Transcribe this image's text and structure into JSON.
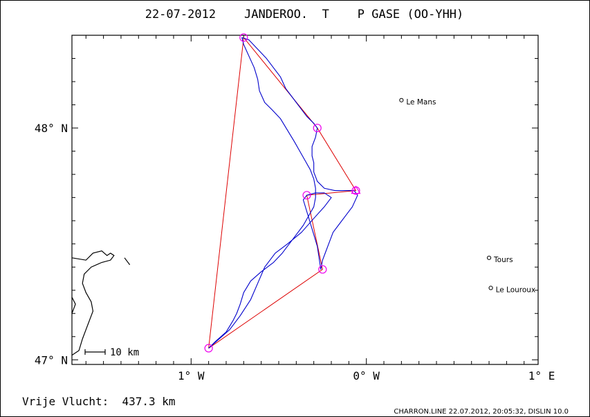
{
  "title": "22-07-2012    JANDEROO.  T    P GASE (OO-YHH)",
  "axes": {
    "y_labels": [
      {
        "text": "48° N",
        "lat": 48.0
      },
      {
        "text": "47° N",
        "lat": 47.0
      }
    ],
    "x_labels": [
      {
        "text": "1° W",
        "lon": -1.0
      },
      {
        "text": "0° W",
        "lon": 0.0
      },
      {
        "text": "1° E",
        "lon": 1.0
      }
    ]
  },
  "scale_bar_label": "10 km",
  "cities": [
    {
      "name": "Le Mans",
      "lon": 0.2,
      "lat": 48.12
    },
    {
      "name": "Tours",
      "lon": 0.7,
      "lat": 47.44
    },
    {
      "name": "Le Louroux",
      "lon": 0.71,
      "lat": 47.31
    }
  ],
  "footer": {
    "distance_text": "Vrije Vlucht:  437.3 km",
    "credit": "CHARRON.LINE 22.07.2012, 20:05:32, DISLIN 10.0"
  },
  "colors": {
    "track": "#0000cc",
    "task_lines": "#dd0000",
    "turnpoints": "#ee00ee",
    "frame": "#000000"
  },
  "chart_data": {
    "type": "map",
    "xlim": [
      -1.68,
      0.98
    ],
    "ylim": [
      46.98,
      48.4
    ],
    "task_points": [
      {
        "lon": -0.9,
        "lat": 47.05
      },
      {
        "lon": -0.7,
        "lat": 48.39
      },
      {
        "lon": -0.28,
        "lat": 48.0
      },
      {
        "lon": -0.06,
        "lat": 47.73
      },
      {
        "lon": -0.34,
        "lat": 47.71
      },
      {
        "lon": -0.25,
        "lat": 47.39
      }
    ],
    "task_order": [
      0,
      1,
      2,
      3,
      4,
      5,
      0
    ],
    "start_marker": {
      "lon": -0.06,
      "lat": 47.73,
      "shape": "triangle"
    },
    "track": [
      [
        -0.9,
        47.05
      ],
      [
        -0.86,
        47.08
      ],
      [
        -0.8,
        47.12
      ],
      [
        -0.76,
        47.17
      ],
      [
        -0.74,
        47.2
      ],
      [
        -0.72,
        47.24
      ],
      [
        -0.7,
        47.29
      ],
      [
        -0.66,
        47.34
      ],
      [
        -0.6,
        47.38
      ],
      [
        -0.53,
        47.42
      ],
      [
        -0.48,
        47.46
      ],
      [
        -0.44,
        47.5
      ],
      [
        -0.4,
        47.54
      ],
      [
        -0.36,
        47.58
      ],
      [
        -0.33,
        47.62
      ],
      [
        -0.3,
        47.66
      ],
      [
        -0.29,
        47.7
      ],
      [
        -0.29,
        47.74
      ],
      [
        -0.3,
        47.78
      ],
      [
        -0.32,
        47.82
      ],
      [
        -0.35,
        47.86
      ],
      [
        -0.38,
        47.9
      ],
      [
        -0.41,
        47.94
      ],
      [
        -0.45,
        47.99
      ],
      [
        -0.49,
        48.04
      ],
      [
        -0.54,
        48.08
      ],
      [
        -0.58,
        48.11
      ],
      [
        -0.61,
        48.16
      ],
      [
        -0.62,
        48.21
      ],
      [
        -0.64,
        48.26
      ],
      [
        -0.67,
        48.31
      ],
      [
        -0.7,
        48.36
      ],
      [
        -0.71,
        48.39
      ],
      [
        -0.67,
        48.38
      ],
      [
        -0.62,
        48.34
      ],
      [
        -0.57,
        48.3
      ],
      [
        -0.53,
        48.26
      ],
      [
        -0.49,
        48.22
      ],
      [
        -0.46,
        48.17
      ],
      [
        -0.42,
        48.13
      ],
      [
        -0.38,
        48.09
      ],
      [
        -0.34,
        48.05
      ],
      [
        -0.3,
        48.02
      ],
      [
        -0.28,
        48.0
      ],
      [
        -0.29,
        47.96
      ],
      [
        -0.31,
        47.92
      ],
      [
        -0.31,
        47.88
      ],
      [
        -0.3,
        47.85
      ],
      [
        -0.3,
        47.81
      ],
      [
        -0.28,
        47.77
      ],
      [
        -0.24,
        47.74
      ],
      [
        -0.18,
        47.73
      ],
      [
        -0.12,
        47.73
      ],
      [
        -0.07,
        47.73
      ],
      [
        -0.05,
        47.71
      ],
      [
        -0.08,
        47.66
      ],
      [
        -0.12,
        47.62
      ],
      [
        -0.16,
        47.58
      ],
      [
        -0.19,
        47.55
      ],
      [
        -0.21,
        47.51
      ],
      [
        -0.23,
        47.47
      ],
      [
        -0.25,
        47.43
      ],
      [
        -0.26,
        47.39
      ],
      [
        -0.27,
        47.44
      ],
      [
        -0.28,
        47.49
      ],
      [
        -0.3,
        47.54
      ],
      [
        -0.32,
        47.59
      ],
      [
        -0.34,
        47.64
      ],
      [
        -0.36,
        47.69
      ],
      [
        -0.34,
        47.71
      ],
      [
        -0.29,
        47.72
      ],
      [
        -0.24,
        47.72
      ],
      [
        -0.2,
        47.7
      ],
      [
        -0.24,
        47.66
      ],
      [
        -0.3,
        47.61
      ],
      [
        -0.37,
        47.55
      ],
      [
        -0.45,
        47.5
      ],
      [
        -0.52,
        47.46
      ],
      [
        -0.58,
        47.4
      ],
      [
        -0.62,
        47.33
      ],
      [
        -0.66,
        47.26
      ],
      [
        -0.72,
        47.19
      ],
      [
        -0.78,
        47.13
      ],
      [
        -0.84,
        47.09
      ],
      [
        -0.9,
        47.05
      ]
    ],
    "coastline": [
      [
        [
          -1.68,
          47.44
        ],
        [
          -1.6,
          47.43
        ],
        [
          -1.56,
          47.46
        ],
        [
          -1.51,
          47.47
        ],
        [
          -1.48,
          47.45
        ],
        [
          -1.46,
          47.46
        ],
        [
          -1.44,
          47.45
        ],
        [
          -1.46,
          47.43
        ],
        [
          -1.51,
          47.42
        ],
        [
          -1.57,
          47.4
        ],
        [
          -1.61,
          47.37
        ],
        [
          -1.62,
          47.33
        ],
        [
          -1.6,
          47.29
        ],
        [
          -1.57,
          47.25
        ],
        [
          -1.56,
          47.21
        ],
        [
          -1.58,
          47.17
        ],
        [
          -1.6,
          47.13
        ],
        [
          -1.62,
          47.09
        ],
        [
          -1.64,
          47.04
        ],
        [
          -1.68,
          47.02
        ]
      ],
      [
        [
          -1.68,
          47.27
        ],
        [
          -1.66,
          47.24
        ],
        [
          -1.68,
          47.2
        ]
      ],
      [
        [
          -1.38,
          47.44
        ],
        [
          -1.35,
          47.41
        ]
      ]
    ]
  }
}
